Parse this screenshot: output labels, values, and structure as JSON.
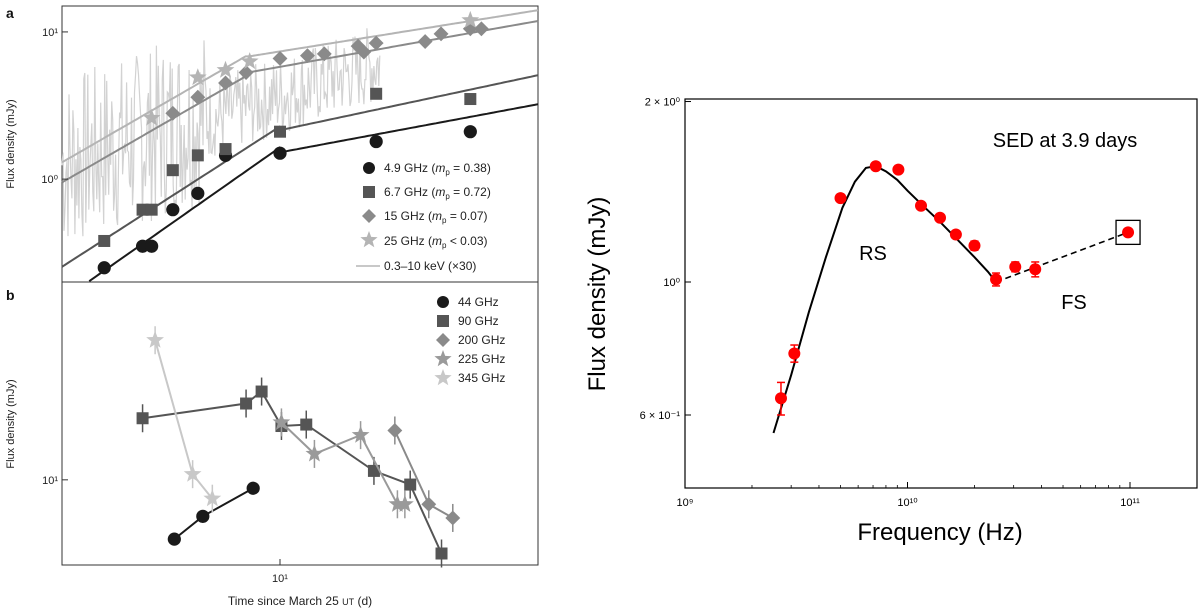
{
  "chart_data": [
    {
      "panel": "a",
      "type": "scatter",
      "xlabel": "",
      "ylabel": "Flux density (mJy)",
      "xscale": "log",
      "yscale": "log",
      "xlim": [
        2.2,
        60
      ],
      "ylim": [
        0.2,
        15
      ],
      "xticks": [
        {
          "value": 10,
          "label": "10¹"
        }
      ],
      "yticks": [
        {
          "value": 1,
          "label": "10⁰"
        },
        {
          "value": 10,
          "label": "10¹"
        }
      ],
      "legend_placement": "bottom-right",
      "series": [
        {
          "name": "4.9 GHz (m_p = 0.38)",
          "marker": "circle",
          "color": "#1a1a1a",
          "x": [
            2.95,
            3.85,
            4.1,
            4.75,
            5.65,
            6.85,
            10.0,
            19.5,
            37.5
          ],
          "y": [
            0.25,
            0.35,
            0.35,
            0.62,
            0.8,
            1.45,
            1.5,
            1.8,
            2.1
          ]
        },
        {
          "name": "6.7 GHz (m_p = 0.72)",
          "marker": "square",
          "color": "#555555",
          "x": [
            2.95,
            3.85,
            4.1,
            4.75,
            5.65,
            6.85,
            10.0,
            19.5,
            37.5
          ],
          "y": [
            0.38,
            0.62,
            0.62,
            1.15,
            1.45,
            1.6,
            2.1,
            3.8,
            3.5
          ]
        },
        {
          "name": "15 GHz (m_p = 0.07)",
          "marker": "diamond",
          "color": "#8a8a8a",
          "x": [
            4.75,
            5.65,
            6.85,
            7.9,
            10.0,
            12.1,
            13.6,
            17.2,
            17.9,
            19.5,
            27.4,
            30.6,
            37.5,
            40.5
          ],
          "y": [
            2.8,
            3.6,
            4.5,
            5.3,
            6.6,
            6.9,
            7.1,
            8.0,
            7.3,
            8.4,
            8.6,
            9.7,
            10.5,
            10.5
          ]
        },
        {
          "name": "25 GHz (m_p < 0.03)",
          "marker": "star",
          "color": "#b4b4b4",
          "x": [
            4.1,
            5.65,
            6.85,
            8.1,
            37.5
          ],
          "y": [
            2.6,
            4.9,
            5.5,
            6.3,
            12.0
          ]
        },
        {
          "name": "0.3–10 keV (×30)",
          "marker": "line",
          "color": "#d2d2d2"
        }
      ]
    },
    {
      "panel": "b",
      "type": "line",
      "xlabel": "Time since March 25 UT (d)",
      "ylabel": "Flux density (mJy)",
      "xscale": "log",
      "yscale": "log",
      "xlim": [
        2.2,
        60
      ],
      "ylim": [
        4.8,
        55
      ],
      "xticks": [
        {
          "value": 10,
          "label": "10¹"
        }
      ],
      "yticks": [
        {
          "value": 10,
          "label": "10¹"
        }
      ],
      "legend_placement": "top-right",
      "series": [
        {
          "name": "44 GHz",
          "marker": "circle",
          "color": "#1a1a1a",
          "x": [
            4.8,
            5.85,
            8.3
          ],
          "y": [
            6.0,
            7.3,
            9.3
          ]
        },
        {
          "name": "90 GHz",
          "marker": "square",
          "color": "#555555",
          "x": [
            3.85,
            7.9,
            8.8,
            10.1,
            12.0,
            19.2,
            24.7,
            30.7
          ],
          "y": [
            17.0,
            19.3,
            21.4,
            15.9,
            16.1,
            10.8,
            9.6,
            5.3
          ]
        },
        {
          "name": "200 GHz",
          "marker": "diamond",
          "color": "#8a8a8a",
          "x": [
            22.2,
            28.1,
            33.2
          ],
          "y": [
            15.3,
            8.1,
            7.2
          ]
        },
        {
          "name": "225 GHz",
          "marker": "star",
          "color": "#9a9a9a",
          "x": [
            10.1,
            12.7,
            17.5,
            22.6,
            23.8
          ],
          "y": [
            16.4,
            12.5,
            14.7,
            8.1,
            8.1
          ]
        },
        {
          "name": "345 GHz",
          "marker": "star",
          "color": "#c8c8c8",
          "x": [
            4.2,
            5.45,
            6.25
          ],
          "y": [
            33.3,
            10.5,
            8.5
          ]
        }
      ]
    },
    {
      "panel": "right",
      "type": "scatter",
      "title": "SED at 3.9 days",
      "xlabel": "Frequency (Hz)",
      "ylabel": "Flux density (mJy)",
      "xscale": "log",
      "yscale": "log",
      "xlim": [
        1000000000.0,
        200000000000.0
      ],
      "ylim": [
        0.45,
        2.0
      ],
      "xticks": [
        {
          "value": 1000000000.0,
          "label": "10⁹"
        },
        {
          "value": 10000000000.0,
          "label": "10¹⁰"
        },
        {
          "value": 100000000000.0,
          "label": "10¹¹"
        }
      ],
      "yticks": [
        {
          "value": 0.6,
          "label": "6 × 10⁻¹"
        },
        {
          "value": 1.0,
          "label": "10⁰"
        },
        {
          "value": 2.0,
          "label": "2 × 10⁰"
        }
      ],
      "annotations": [
        "RS",
        "FS"
      ],
      "series": [
        {
          "marker": "circle",
          "color": "#ff0000",
          "x": [
            2700000000.0,
            3100000000.0,
            5000000000.0,
            7200000000.0,
            9100000000.0,
            11500000000.0,
            14000000000.0,
            16500000000.0,
            20000000000.0,
            25000000000.0,
            30500000000.0,
            37500000000.0,
            98000000000.0
          ],
          "y": [
            0.64,
            0.76,
            1.38,
            1.56,
            1.54,
            1.34,
            1.28,
            1.2,
            1.15,
            1.01,
            1.06,
            1.05,
            1.21
          ],
          "yerr": [
            0.04,
            0.025,
            0.01,
            0.01,
            0.01,
            0.01,
            0.01,
            0.01,
            0.02,
            0.025,
            0.02,
            0.03,
            0.01
          ]
        },
        {
          "marker": "line",
          "style": "solid",
          "color": "#000000",
          "x": [
            2500000000.0,
            3000000000.0,
            3600000000.0,
            4300000000.0,
            5100000000.0,
            5800000000.0,
            6500000000.0,
            7200000000.0,
            8000000000.0,
            9000000000.0,
            10000000000.0,
            12000000000.0,
            14000000000.0,
            17000000000.0,
            20000000000.0,
            23000000000.0,
            25000000000.0
          ],
          "y": [
            0.56,
            0.7,
            0.89,
            1.1,
            1.33,
            1.47,
            1.55,
            1.56,
            1.53,
            1.48,
            1.42,
            1.33,
            1.26,
            1.17,
            1.1,
            1.04,
            1.0
          ]
        },
        {
          "marker": "line",
          "style": "dashed",
          "color": "#000000",
          "x": [
            25000000000.0,
            98000000000.0
          ],
          "y": [
            1.0,
            1.21
          ]
        }
      ]
    }
  ],
  "panel_labels": {
    "a": "a",
    "b": "b"
  },
  "legend_a": [
    {
      "freq": "4.9 GHz (",
      "mp": "= 0.38)"
    },
    {
      "freq": "6.7 GHz (",
      "mp": "= 0.72)"
    },
    {
      "freq": "15 GHz (",
      "mp": "= 0.07)"
    },
    {
      "freq": "25 GHz (",
      "mp": "< 0.03)"
    },
    {
      "freq": "0.3–10 keV (×30)",
      "mp": ""
    }
  ],
  "legend_b": [
    "44 GHz",
    "90 GHz",
    "200 GHz",
    "225 GHz",
    "345 GHz"
  ],
  "xlabel_b_parts": {
    "pre": "Time since March 25 ",
    "ut": "UT",
    "post": " (d)"
  },
  "colors": {
    "red": "#ff0000",
    "black": "#1a1a1a",
    "dark_gray": "#555555",
    "mid_gray": "#8a8a8a",
    "light_gray": "#b4b4b4",
    "xray": "#d2d2d2"
  }
}
